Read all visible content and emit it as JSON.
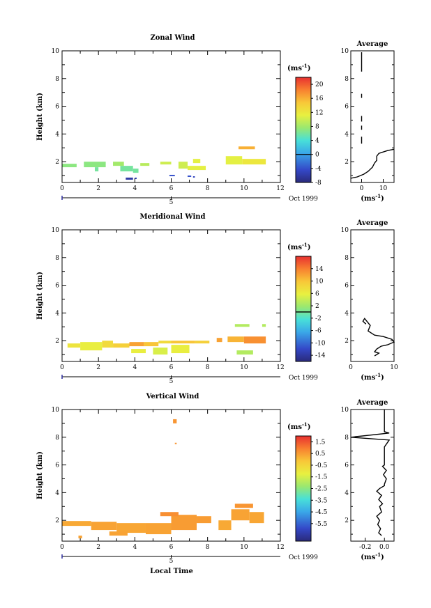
{
  "figure": {
    "x_axis_title": "Local Time",
    "date_label": "Oct 1999",
    "day_marker": "5",
    "colorbar_unit_html": "(ms<tspan baseline-shift='super' font-size='7'>-1</tspan>)",
    "colorbar_unit": "(ms-1)",
    "profile_title": "Average",
    "profile_unit": "(ms-1)"
  },
  "chart_data": [
    {
      "type": "heatmap",
      "title": "Zonal Wind",
      "ylabel": "Height (km)",
      "xlabel": "",
      "xlim": [
        0,
        12
      ],
      "ylim": [
        0.5,
        10
      ],
      "xticks": [
        "0",
        "2",
        "4",
        "6",
        "8",
        "10",
        "12"
      ],
      "yticks": [
        "2",
        "4",
        "6",
        "8",
        "10"
      ],
      "colorbar": {
        "range": [
          -8,
          22
        ],
        "ticks": [
          "20",
          "16",
          "12",
          "8",
          "4",
          "0",
          "-4",
          "-8"
        ],
        "zero_line": 0
      },
      "cells": [
        {
          "t0": 0.0,
          "t1": 0.8,
          "h0": 1.6,
          "h1": 1.85,
          "v": 7
        },
        {
          "t0": 1.2,
          "t1": 2.4,
          "h0": 1.6,
          "h1": 2.0,
          "v": 7
        },
        {
          "t0": 1.8,
          "t1": 2.0,
          "h0": 1.3,
          "h1": 1.6,
          "v": 6
        },
        {
          "t0": 2.8,
          "t1": 3.4,
          "h0": 1.7,
          "h1": 2.0,
          "v": 8
        },
        {
          "t0": 3.2,
          "t1": 3.9,
          "h0": 1.3,
          "h1": 1.7,
          "v": 6
        },
        {
          "t0": 3.9,
          "t1": 4.2,
          "h0": 1.2,
          "h1": 1.5,
          "v": 6
        },
        {
          "t0": 4.3,
          "t1": 4.8,
          "h0": 1.7,
          "h1": 1.9,
          "v": 9
        },
        {
          "t0": 5.4,
          "t1": 6.0,
          "h0": 1.8,
          "h1": 2.0,
          "v": 10
        },
        {
          "t0": 6.4,
          "t1": 6.9,
          "h0": 1.5,
          "h1": 2.0,
          "v": 10
        },
        {
          "t0": 6.9,
          "t1": 7.9,
          "h0": 1.4,
          "h1": 1.7,
          "v": 11
        },
        {
          "t0": 7.2,
          "t1": 7.6,
          "h0": 1.9,
          "h1": 2.2,
          "v": 11
        },
        {
          "t0": 9.0,
          "t1": 9.9,
          "h0": 1.8,
          "h1": 2.4,
          "v": 11
        },
        {
          "t0": 9.9,
          "t1": 11.2,
          "h0": 1.8,
          "h1": 2.2,
          "v": 12
        },
        {
          "t0": 9.7,
          "t1": 10.6,
          "h0": 2.9,
          "h1": 3.1,
          "v": 16
        },
        {
          "t0": 3.5,
          "t1": 3.9,
          "h0": 0.7,
          "h1": 0.85,
          "v": -6
        },
        {
          "t0": 4.0,
          "t1": 4.1,
          "h0": 0.75,
          "h1": 0.85,
          "v": -5
        },
        {
          "t0": 5.9,
          "t1": 6.2,
          "h0": 0.95,
          "h1": 1.05,
          "v": -4
        },
        {
          "t0": 6.9,
          "t1": 7.1,
          "h0": 0.9,
          "h1": 1.0,
          "v": -4
        },
        {
          "t0": 7.2,
          "t1": 7.3,
          "h0": 0.85,
          "h1": 0.95,
          "v": -5
        }
      ],
      "profile": {
        "xlim": [
          -5,
          15
        ],
        "xticks": [
          "0",
          "10"
        ],
        "segments": [
          [
            [
              0,
              9.9
            ],
            [
              0,
              8.5
            ]
          ],
          [
            [
              0,
              6.9
            ],
            [
              0,
              6.6
            ]
          ],
          [
            [
              0,
              5.3
            ],
            [
              0,
              4.9
            ]
          ],
          [
            [
              0,
              4.6
            ],
            [
              0,
              4.3
            ]
          ],
          [
            [
              0,
              3.8
            ],
            [
              0,
              3.3
            ]
          ],
          [
            [
              15,
              2.9
            ],
            [
              12,
              2.8
            ],
            [
              10,
              2.7
            ],
            [
              8,
              2.6
            ],
            [
              7,
              2.4
            ],
            [
              7,
              2.1
            ],
            [
              6,
              1.9
            ],
            [
              5,
              1.6
            ],
            [
              3,
              1.3
            ],
            [
              1,
              1.1
            ],
            [
              -2,
              0.9
            ],
            [
              -5,
              0.8
            ]
          ]
        ]
      }
    },
    {
      "type": "heatmap",
      "title": "Meridional Wind",
      "ylabel": "Height (km)",
      "xlabel": "",
      "xlim": [
        0,
        12
      ],
      "ylim": [
        0.5,
        10
      ],
      "xticks": [
        "0",
        "2",
        "4",
        "6",
        "8",
        "10",
        "12"
      ],
      "yticks": [
        "2",
        "4",
        "6",
        "8",
        "10"
      ],
      "colorbar": {
        "range": [
          -16,
          18
        ],
        "ticks": [
          "14",
          "10",
          "6",
          "2",
          "-2",
          "-6",
          "-10",
          "-14"
        ],
        "zero_line": 0
      },
      "cells": [
        {
          "t0": 0.3,
          "t1": 1.0,
          "h0": 1.5,
          "h1": 1.8,
          "v": 7
        },
        {
          "t0": 1.0,
          "t1": 2.2,
          "h0": 1.3,
          "h1": 1.9,
          "v": 6
        },
        {
          "t0": 2.2,
          "t1": 2.8,
          "h0": 1.5,
          "h1": 2.0,
          "v": 8
        },
        {
          "t0": 2.8,
          "t1": 3.7,
          "h0": 1.5,
          "h1": 1.8,
          "v": 9
        },
        {
          "t0": 3.7,
          "t1": 4.5,
          "h0": 1.6,
          "h1": 1.9,
          "v": 12
        },
        {
          "t0": 4.5,
          "t1": 5.3,
          "h0": 1.6,
          "h1": 1.9,
          "v": 10
        },
        {
          "t0": 5.3,
          "t1": 6.0,
          "h0": 1.8,
          "h1": 2.0,
          "v": 8
        },
        {
          "t0": 6.0,
          "t1": 7.3,
          "h0": 1.8,
          "h1": 2.0,
          "v": 10
        },
        {
          "t0": 7.3,
          "t1": 8.1,
          "h0": 1.8,
          "h1": 2.0,
          "v": 9
        },
        {
          "t0": 3.8,
          "t1": 4.6,
          "h0": 1.1,
          "h1": 1.4,
          "v": 6
        },
        {
          "t0": 5.0,
          "t1": 5.8,
          "h0": 1.0,
          "h1": 1.5,
          "v": 5
        },
        {
          "t0": 6.0,
          "t1": 7.0,
          "h0": 1.1,
          "h1": 1.7,
          "v": 6
        },
        {
          "t0": 8.5,
          "t1": 8.8,
          "h0": 1.9,
          "h1": 2.2,
          "v": 12
        },
        {
          "t0": 9.1,
          "t1": 10.0,
          "h0": 1.9,
          "h1": 2.3,
          "v": 11
        },
        {
          "t0": 10.0,
          "t1": 11.2,
          "h0": 1.8,
          "h1": 2.3,
          "v": 13
        },
        {
          "t0": 9.5,
          "t1": 10.3,
          "h0": 3.0,
          "h1": 3.2,
          "v": 3
        },
        {
          "t0": 11.0,
          "t1": 11.2,
          "h0": 3.0,
          "h1": 3.2,
          "v": 3
        },
        {
          "t0": 9.6,
          "t1": 10.5,
          "h0": 1.0,
          "h1": 1.3,
          "v": 3
        }
      ],
      "profile": {
        "xlim": [
          0,
          10
        ],
        "xticks": [
          "0",
          "10"
        ],
        "segments": [
          [
            [
              3.5,
              3.2
            ],
            [
              2.8,
              3.4
            ],
            [
              3.2,
              3.6
            ],
            [
              4.5,
              3.1
            ],
            [
              4.0,
              2.7
            ],
            [
              5.5,
              2.4
            ],
            [
              7.5,
              2.3
            ],
            [
              9.5,
              2.1
            ],
            [
              10.0,
              1.9
            ],
            [
              8.5,
              1.7
            ],
            [
              7.0,
              1.6
            ],
            [
              6.0,
              1.4
            ],
            [
              5.5,
              1.2
            ],
            [
              6.5,
              1.1
            ],
            [
              5.5,
              0.9
            ]
          ]
        ]
      }
    },
    {
      "type": "heatmap",
      "title": "Vertical Wind",
      "ylabel": "Height (km)",
      "xlabel": "Local Time",
      "xlim": [
        0,
        12
      ],
      "ylim": [
        0.5,
        10
      ],
      "xticks": [
        "0",
        "2",
        "4",
        "6",
        "8",
        "10",
        "12"
      ],
      "yticks": [
        "2",
        "4",
        "6",
        "8",
        "10"
      ],
      "colorbar": {
        "range": [
          -7,
          2
        ],
        "ticks": [
          "1.5",
          "0.5",
          "-0.5",
          "-1.5",
          "-2.5",
          "-3.5",
          "-4.5",
          "-5.5"
        ]
      },
      "cells": [
        {
          "t0": 0.0,
          "t1": 1.6,
          "h0": 1.6,
          "h1": 1.95,
          "v": 0.3
        },
        {
          "t0": 1.6,
          "t1": 3.0,
          "h0": 1.3,
          "h1": 1.9,
          "v": 0.4
        },
        {
          "t0": 3.0,
          "t1": 4.6,
          "h0": 1.1,
          "h1": 1.8,
          "v": 0.35
        },
        {
          "t0": 4.6,
          "t1": 6.0,
          "h0": 1.0,
          "h1": 1.8,
          "v": 0.4
        },
        {
          "t0": 6.0,
          "t1": 7.4,
          "h0": 1.3,
          "h1": 2.4,
          "v": 0.5
        },
        {
          "t0": 2.6,
          "t1": 3.6,
          "h0": 0.9,
          "h1": 1.2,
          "v": 0.4
        },
        {
          "t0": 5.4,
          "t1": 6.4,
          "h0": 2.3,
          "h1": 2.6,
          "v": 0.7
        },
        {
          "t0": 7.4,
          "t1": 8.2,
          "h0": 1.8,
          "h1": 2.3,
          "v": 0.5
        },
        {
          "t0": 8.6,
          "t1": 9.3,
          "h0": 1.3,
          "h1": 2.0,
          "v": 0.3
        },
        {
          "t0": 9.3,
          "t1": 10.3,
          "h0": 2.0,
          "h1": 2.8,
          "v": 0.4
        },
        {
          "t0": 10.3,
          "t1": 11.1,
          "h0": 1.8,
          "h1": 2.6,
          "v": 0.35
        },
        {
          "t0": 9.5,
          "t1": 10.5,
          "h0": 2.9,
          "h1": 3.2,
          "v": 0.6
        },
        {
          "t0": 0.9,
          "t1": 1.1,
          "h0": 0.7,
          "h1": 0.9,
          "v": 0.4
        },
        {
          "t0": 6.1,
          "t1": 6.3,
          "h0": 9.0,
          "h1": 9.3,
          "v": 0.6
        },
        {
          "t0": 6.2,
          "t1": 6.3,
          "h0": 7.5,
          "h1": 7.6,
          "v": 0.6
        }
      ],
      "profile": {
        "xlim": [
          -0.35,
          0.1
        ],
        "xticks": [
          "-0.2",
          "0.0"
        ],
        "segments": [
          [
            [
              0.0,
              10.0
            ],
            [
              0.0,
              8.4
            ],
            [
              0.05,
              8.3
            ],
            [
              -0.35,
              8.0
            ],
            [
              0.05,
              7.8
            ],
            [
              0.03,
              7.6
            ],
            [
              0.0,
              7.3
            ],
            [
              0.0,
              6.0
            ],
            [
              -0.02,
              5.9
            ],
            [
              0.02,
              5.6
            ],
            [
              -0.01,
              5.3
            ],
            [
              0.02,
              5.0
            ],
            [
              0.0,
              4.6
            ],
            [
              0.0,
              4.5
            ],
            [
              -0.05,
              4.3
            ],
            [
              -0.08,
              4.1
            ],
            [
              -0.03,
              3.8
            ],
            [
              -0.06,
              3.5
            ],
            [
              -0.02,
              3.2
            ],
            [
              -0.05,
              3.0
            ],
            [
              -0.03,
              2.6
            ],
            [
              -0.08,
              2.3
            ],
            [
              -0.05,
              2.0
            ],
            [
              -0.07,
              1.7
            ],
            [
              -0.04,
              1.4
            ],
            [
              -0.06,
              1.1
            ],
            [
              -0.03,
              0.9
            ]
          ]
        ]
      }
    }
  ]
}
